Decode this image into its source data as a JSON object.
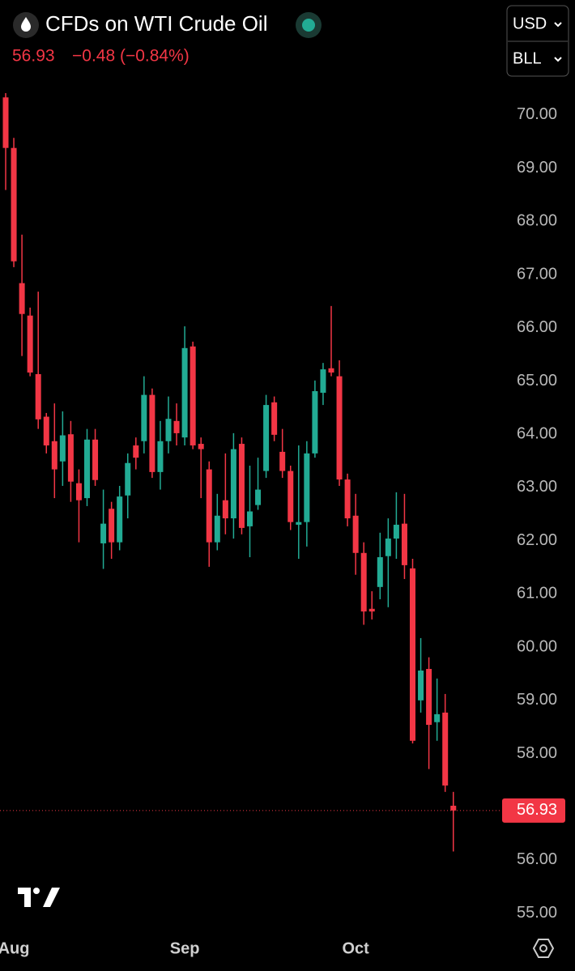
{
  "header": {
    "title": "CFDs on WTI Crude Oil",
    "price": "56.93",
    "change": "−0.48 (−0.84%)",
    "currency": "USD",
    "unit": "BLL"
  },
  "chart_data": {
    "type": "candlestick",
    "categories": [
      null,
      "Aug",
      null,
      null,
      null,
      null,
      null,
      null,
      null,
      null,
      null,
      null,
      null,
      null,
      null,
      null,
      null,
      null,
      null,
      null,
      null,
      null,
      "Sep",
      null,
      null,
      null,
      null,
      null,
      null,
      null,
      null,
      null,
      null,
      null,
      null,
      null,
      null,
      null,
      null,
      null,
      null,
      null,
      null,
      "Oct",
      null,
      null,
      null,
      null,
      null,
      null,
      null,
      null,
      null,
      null,
      null,
      null
    ],
    "open": [
      70.33,
      69.38,
      66.84,
      66.23,
      65.13,
      64.33,
      63.87,
      63.49,
      64.0,
      63.08,
      62.8,
      63.9,
      61.95,
      62.6,
      61.97,
      62.85,
      63.79,
      63.87,
      64.74,
      63.29,
      63.87,
      64.25,
      63.94,
      65.65,
      63.82,
      63.34,
      61.97,
      62.76,
      62.42,
      63.82,
      62.27,
      62.67,
      63.31,
      64.6,
      63.67,
      63.31,
      62.3,
      62.35,
      63.64,
      64.78,
      65.24,
      65.09,
      63.15,
      62.47,
      61.77,
      60.72,
      61.13,
      61.71,
      62.04,
      62.32,
      61.48,
      59.0,
      59.59,
      58.59,
      58.77,
      57.02
    ],
    "high": [
      70.41,
      69.57,
      67.75,
      66.38,
      66.68,
      64.4,
      64.58,
      64.43,
      64.25,
      63.34,
      64.1,
      64.1,
      62.96,
      62.73,
      63.03,
      63.64,
      63.94,
      65.09,
      64.86,
      64.25,
      64.71,
      64.58,
      66.03,
      65.74,
      63.94,
      63.49,
      62.88,
      63.64,
      64.02,
      63.94,
      63.41,
      63.56,
      64.74,
      64.71,
      64.1,
      63.41,
      63.79,
      63.87,
      65.01,
      65.34,
      66.41,
      65.39,
      63.26,
      62.88,
      61.97,
      61.05,
      62.15,
      62.42,
      62.91,
      62.88,
      61.66,
      60.17,
      59.81,
      59.41,
      59.12,
      57.28
    ],
    "low": [
      68.59,
      67.14,
      65.47,
      65.09,
      64.1,
      63.64,
      62.8,
      63.03,
      62.73,
      61.97,
      62.65,
      63.03,
      61.47,
      61.66,
      61.82,
      62.42,
      63.34,
      63.64,
      63.18,
      62.96,
      63.64,
      63.79,
      63.79,
      63.72,
      62.8,
      61.51,
      61.82,
      62.12,
      62.04,
      62.12,
      61.69,
      62.58,
      63.18,
      63.87,
      63.18,
      62.2,
      61.66,
      61.89,
      63.56,
      64.55,
      65.09,
      63.03,
      62.27,
      61.36,
      60.42,
      60.52,
      60.9,
      60.75,
      61.66,
      61.28,
      58.19,
      58.77,
      57.71,
      58.24,
      57.28,
      56.16
    ],
    "close": [
      69.38,
      67.25,
      66.26,
      65.16,
      64.28,
      63.79,
      63.34,
      63.98,
      63.11,
      62.76,
      63.9,
      63.14,
      62.32,
      61.97,
      62.83,
      63.46,
      63.56,
      64.74,
      63.29,
      63.87,
      64.29,
      64.02,
      65.62,
      63.79,
      63.72,
      61.97,
      62.47,
      62.42,
      63.72,
      62.24,
      62.55,
      62.96,
      64.55,
      63.99,
      63.31,
      62.35,
      62.35,
      63.64,
      64.81,
      65.22,
      65.16,
      63.15,
      62.42,
      61.77,
      60.67,
      60.67,
      61.69,
      62.04,
      62.3,
      61.54,
      58.24,
      59.56,
      58.54,
      58.74,
      57.4,
      56.93
    ],
    "up_color": "#22ab94",
    "down_color": "#f23645",
    "last_price": 56.93,
    "ylim": [
      54.66,
      72.16
    ],
    "yticks": [
      {
        "value": 55,
        "label": "55.00"
      },
      {
        "value": 56,
        "label": "56.00"
      },
      {
        "value": 57,
        "label": "57.00"
      },
      {
        "value": 58,
        "label": "58.00"
      },
      {
        "value": 59,
        "label": "59.00"
      },
      {
        "value": 60,
        "label": "60.00"
      },
      {
        "value": 61,
        "label": "61.00"
      },
      {
        "value": 62,
        "label": "62.00"
      },
      {
        "value": 63,
        "label": "63.00"
      },
      {
        "value": 64,
        "label": "64.00"
      },
      {
        "value": 65,
        "label": "65.00"
      },
      {
        "value": 66,
        "label": "66.00"
      },
      {
        "value": 67,
        "label": "67.00"
      },
      {
        "value": 68,
        "label": "68.00"
      },
      {
        "value": 69,
        "label": "69.00"
      },
      {
        "value": 70,
        "label": "70.00"
      }
    ]
  }
}
